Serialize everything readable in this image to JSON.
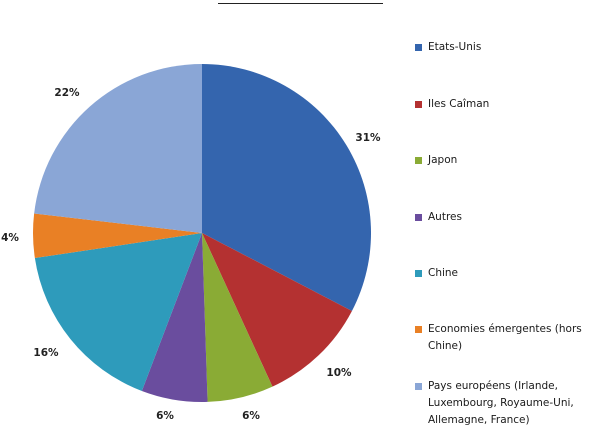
{
  "chart_data": {
    "type": "pie",
    "title": "",
    "start_angle_deg": 0,
    "direction": "clockwise",
    "legend_position": "right",
    "slices": [
      {
        "name": "Etats-Unis",
        "value": 31,
        "label": "31%",
        "color": "#3465AE"
      },
      {
        "name": "Iles Caîman",
        "value": 10,
        "label": "10%",
        "color": "#B43131"
      },
      {
        "name": "Japon",
        "value": 6,
        "label": "6%",
        "color": "#8AAB35"
      },
      {
        "name": "Autres",
        "value": 6,
        "label": "6%",
        "color": "#6A4D9E"
      },
      {
        "name": "Chine",
        "value": 16,
        "label": "16%",
        "color": "#2E9BBB"
      },
      {
        "name": "Economies émergentes (hors Chine)",
        "value": 4,
        "label": "4%",
        "color": "#E98025"
      },
      {
        "name": "Pays européens (Irlande, Luxembourg, Royaume-Uni, Allemagne, France)",
        "value": 22,
        "label": "22%",
        "color": "#8AA6D6"
      }
    ]
  }
}
